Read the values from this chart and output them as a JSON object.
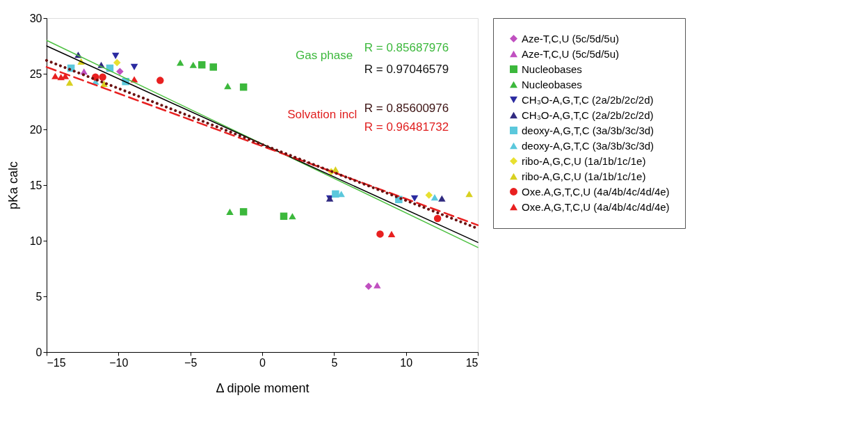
{
  "chart_data": {
    "type": "scatter",
    "xlabel": "Δ dipole moment",
    "ylabel": "pKa calc",
    "xlim": [
      -15,
      15
    ],
    "xticks": [
      -15,
      -10,
      -5,
      0,
      5,
      10,
      15
    ],
    "ylim": [
      0,
      30
    ],
    "yticks": [
      0,
      5,
      10,
      15,
      20,
      25,
      30
    ],
    "grid": false,
    "legend": "right",
    "annotations": [
      "Gas phase",
      "R = 0.85687976",
      "R = 0.97046579",
      "Solvation incl",
      "R = 0.85600976",
      "R = 0.96481732"
    ],
    "series": [
      {
        "name": "Aze-T,C,U (5c/5d/5u)",
        "color": "#c050c0",
        "marker": "diamond",
        "x": [
          -9.9,
          7.4
        ],
        "values": [
          25.2,
          5.9
        ]
      },
      {
        "name": "Aze-T,C,U (5c/5d/5u)",
        "color": "#c050c0",
        "marker": "triangle",
        "x": [
          -12.4,
          8.0
        ],
        "values": [
          25.2,
          6.0
        ]
      },
      {
        "name": "Nucleobases",
        "color": "#3cb83c",
        "marker": "square",
        "x": [
          -4.2,
          -3.4,
          -1.3,
          -1.3,
          1.5
        ],
        "values": [
          25.8,
          25.6,
          23.8,
          12.6,
          12.2
        ]
      },
      {
        "name": "Nucleobases",
        "color": "#3cb83c",
        "marker": "triangle",
        "x": [
          -5.7,
          -4.8,
          -2.4,
          -2.25,
          2.1
        ],
        "values": [
          26.0,
          25.8,
          23.9,
          12.6,
          12.2
        ]
      },
      {
        "name": "CH₃O-A,G,T,C (2a/2b/2c/2d)",
        "color": "#2a2aa0",
        "marker": "triangle-down",
        "x": [
          -10.2,
          -8.9,
          4.7,
          10.6
        ],
        "values": [
          26.6,
          25.6,
          13.8,
          13.8
        ]
      },
      {
        "name": "CH₃O-A,G,T,C (2a/2b/2c/2d)",
        "color": "#302a80",
        "marker": "triangle",
        "x": [
          -12.8,
          -11.2,
          4.7,
          12.5
        ],
        "values": [
          26.7,
          25.8,
          13.8,
          13.8
        ]
      },
      {
        "name": "deoxy-A,G,T,C (3a/3b/3c/3d)",
        "color": "#5bc8dc",
        "marker": "square",
        "x": [
          -13.3,
          -10.6,
          -9.5,
          5.1,
          9.5
        ],
        "values": [
          25.5,
          25.5,
          24.3,
          14.2,
          13.7
        ]
      },
      {
        "name": "deoxy-A,G,T,C (3a/3b/3c/3d)",
        "color": "#5bc8dc",
        "marker": "triangle",
        "x": [
          -11.6,
          5.5,
          12.0
        ],
        "values": [
          24.3,
          14.2,
          13.9
        ]
      },
      {
        "name": "ribo-A,G,C,U (1a/1b/1c/1e)",
        "color": "#e8e030",
        "marker": "diamond",
        "x": [
          -10.1,
          4.8,
          11.6
        ],
        "values": [
          26.0,
          16.2,
          14.1
        ]
      },
      {
        "name": "ribo-A,G,C,U (1a/1b/1c/1e)",
        "color": "#d8d020",
        "marker": "triangle",
        "x": [
          -13.4,
          -12.6,
          -11.0,
          5.1,
          14.4
        ],
        "values": [
          24.2,
          26.1,
          24.1,
          16.4,
          14.2
        ]
      },
      {
        "name": "Oxe.A,G,T,C,U (4a/4b/4c/4d/4e)",
        "color": "#e82020",
        "marker": "circle",
        "x": [
          -11.6,
          -11.1,
          -7.1,
          8.2,
          12.2
        ],
        "values": [
          24.7,
          24.7,
          24.4,
          10.6,
          12.0
        ]
      },
      {
        "name": "Oxe.A,G,T,C,U (4a/4b/4c/4d/4e)",
        "color": "#e82020",
        "marker": "triangle",
        "x": [
          -14.4,
          -14.0,
          -13.7,
          -8.9,
          9.0
        ],
        "values": [
          24.8,
          24.7,
          24.8,
          24.5,
          10.6
        ]
      },
      {
        "type": "line",
        "color": "#4cc040",
        "line_style": "solid",
        "x": [
          -15,
          15
        ],
        "values": [
          28.0,
          9.4
        ]
      },
      {
        "type": "line",
        "color": "#000000",
        "line_style": "solid",
        "x": [
          -15,
          15
        ],
        "values": [
          27.5,
          9.85
        ]
      },
      {
        "type": "line",
        "color": "#e82020",
        "line_style": "dashed",
        "x": [
          -15,
          15
        ],
        "values": [
          25.6,
          11.4
        ]
      },
      {
        "type": "line",
        "color": "#6a1010",
        "line_style": "dotted",
        "x": [
          -15,
          15
        ],
        "values": [
          26.2,
          11.1
        ]
      }
    ]
  }
}
